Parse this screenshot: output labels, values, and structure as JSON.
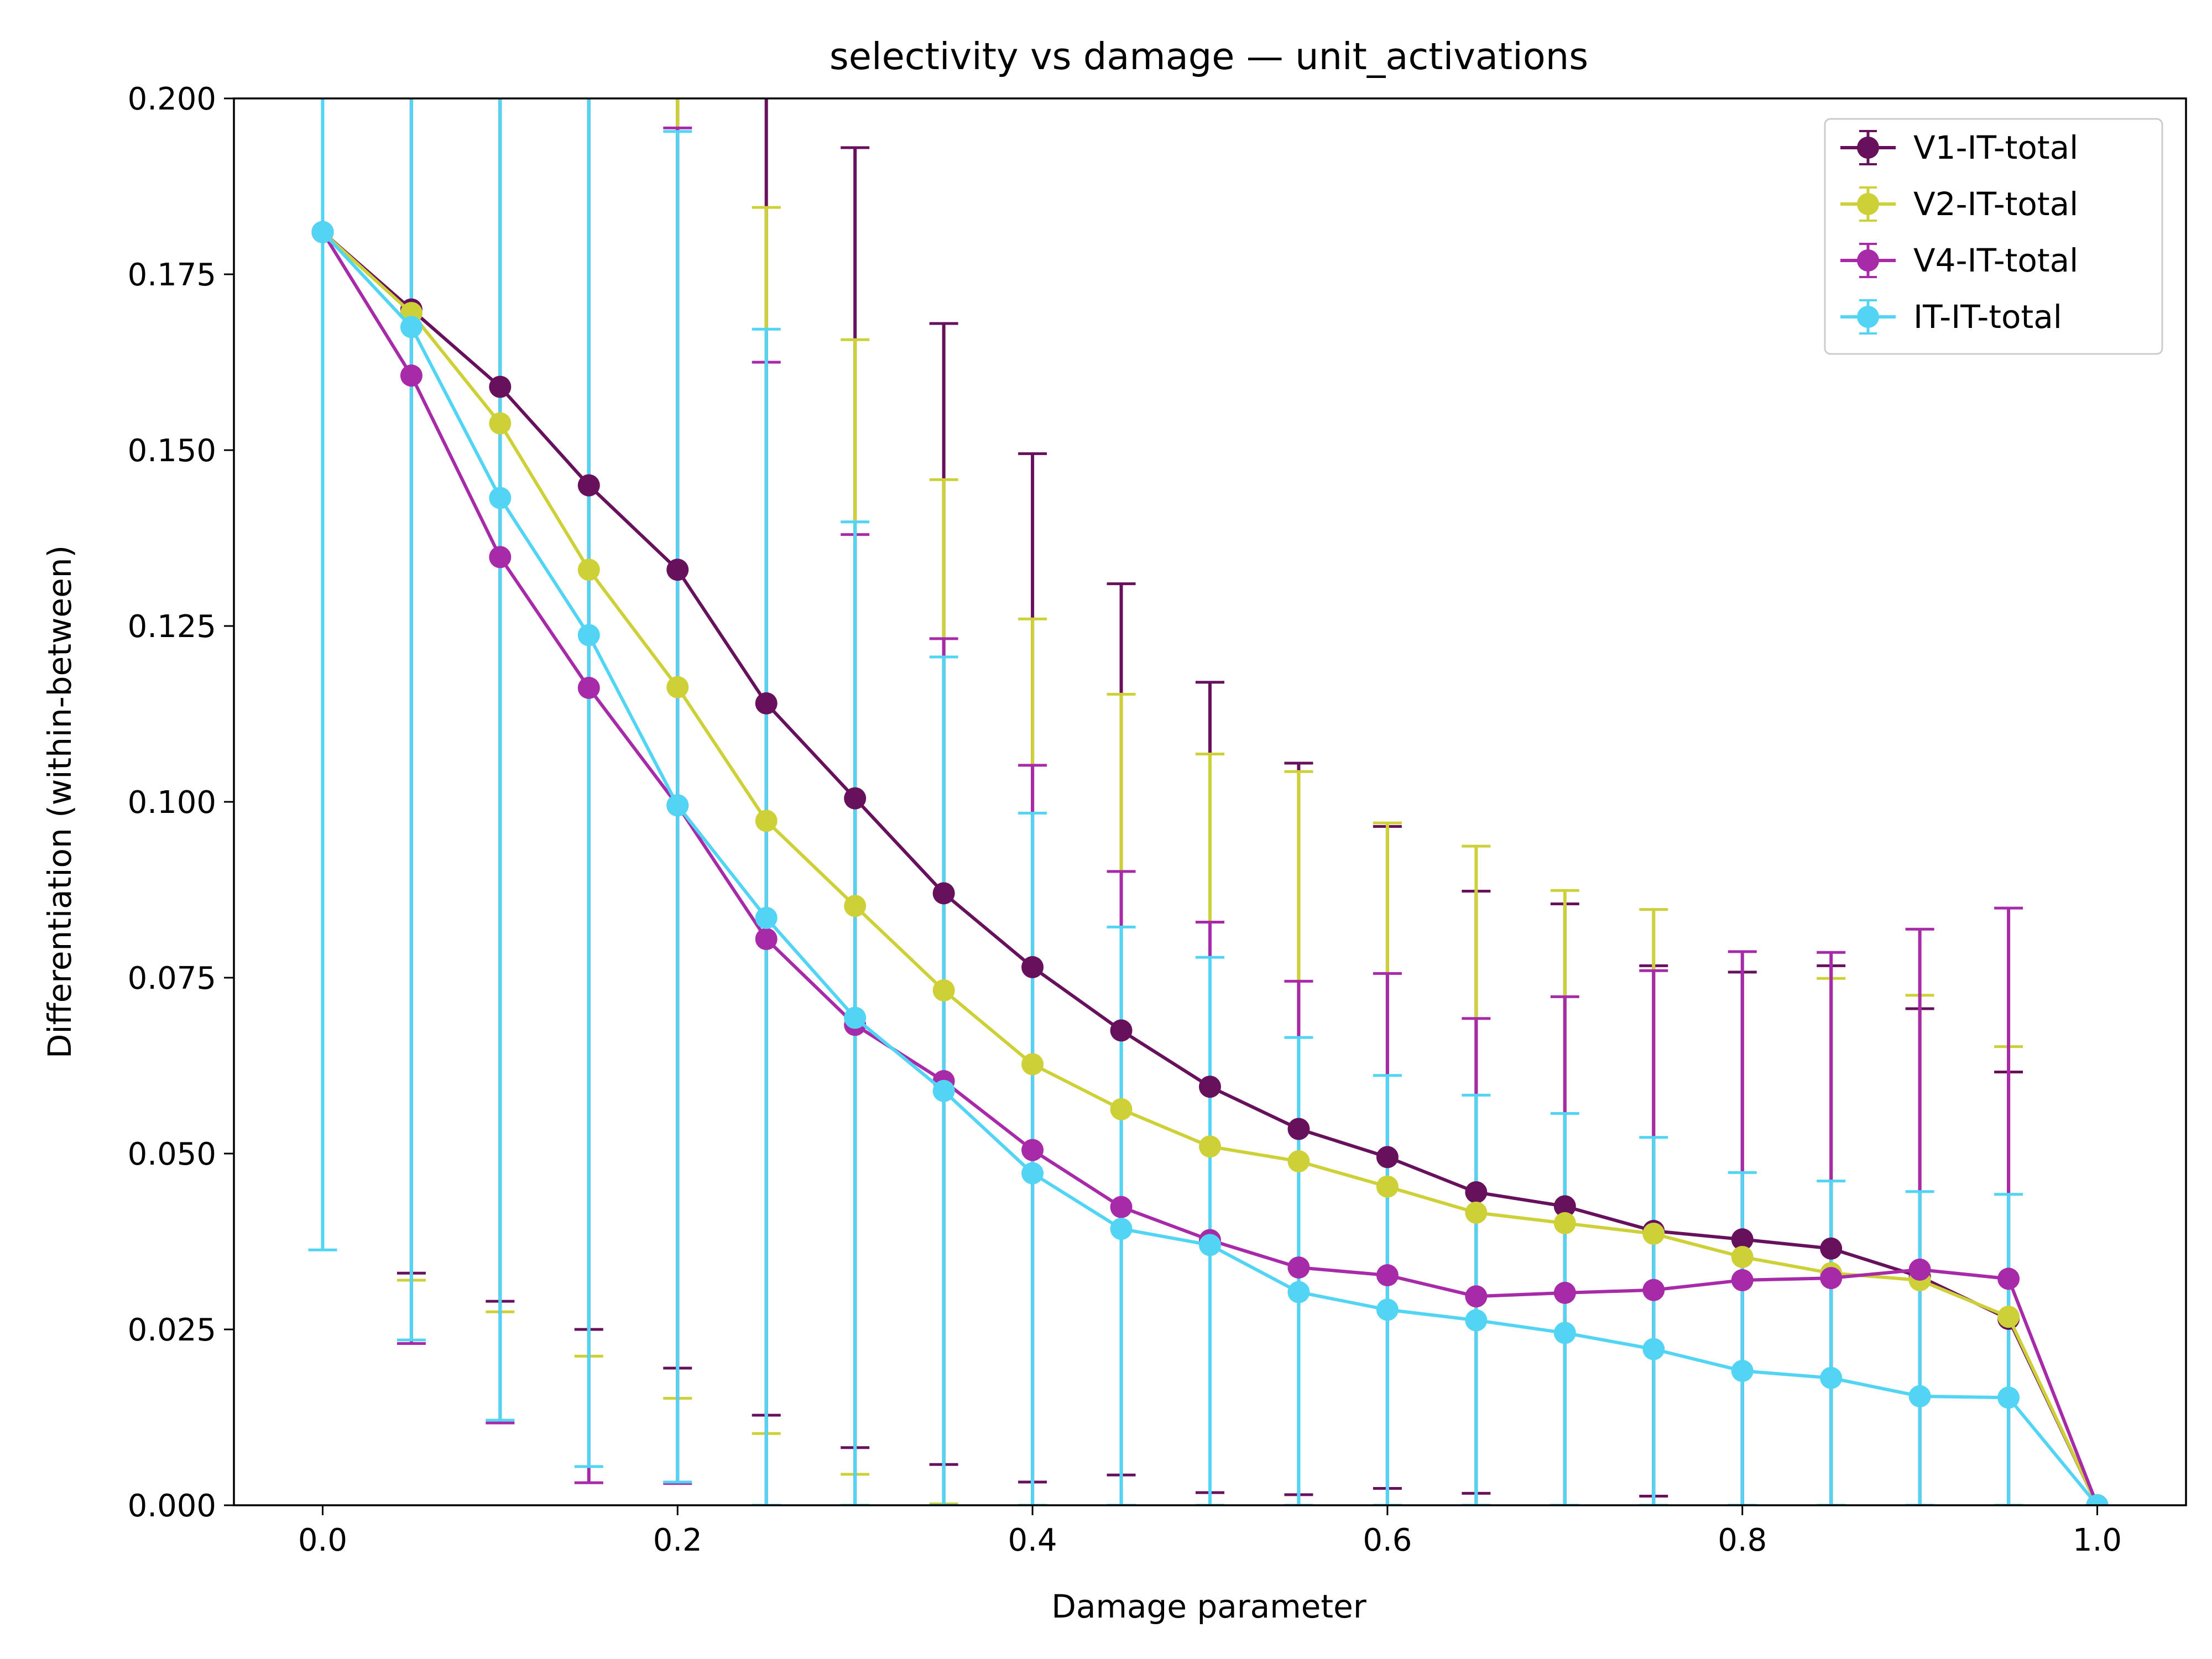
{
  "chart_data": {
    "type": "line",
    "title": "selectivity vs damage — unit_activations",
    "xlabel": "Damage parameter",
    "ylabel": "Differentiation (within-between)",
    "xlim": [
      -0.05,
      1.05
    ],
    "ylim": [
      0,
      0.2
    ],
    "xticks": [
      "0.0",
      "0.2",
      "0.4",
      "0.6",
      "0.8",
      "1.0"
    ],
    "yticks": [
      "0.000",
      "0.025",
      "0.050",
      "0.075",
      "0.100",
      "0.125",
      "0.150",
      "0.175",
      "0.200"
    ],
    "x": [
      0.0,
      0.05,
      0.1,
      0.15,
      0.2,
      0.25,
      0.3,
      0.35,
      0.4,
      0.45,
      0.5,
      0.55,
      0.6,
      0.65,
      0.7,
      0.75,
      0.8,
      0.85,
      0.9,
      0.95,
      1.0
    ],
    "legend_position": "top-right",
    "grid": false,
    "series": [
      {
        "name": "V1-IT-total",
        "color": "#67115d",
        "values": [
          0.181,
          0.17,
          0.159,
          0.145,
          0.133,
          0.114,
          0.1005,
          0.087,
          0.0765,
          0.0675,
          0.0595,
          0.0535,
          0.0495,
          0.0445,
          0.0425,
          0.039,
          0.0378,
          0.0365,
          0.0325,
          0.0265,
          0.0
        ],
        "err_low": [
          null,
          0.033,
          0.029,
          0.025,
          0.0195,
          0.0128,
          0.0082,
          0.0058,
          0.0033,
          0.0043,
          0.0018,
          0.0015,
          0.0024,
          0.0017,
          0.0,
          0.0013,
          null,
          null,
          null,
          null,
          null
        ],
        "err_high": [
          null,
          null,
          null,
          null,
          null,
          null,
          0.193,
          0.168,
          0.1495,
          0.131,
          0.117,
          0.1055,
          0.0965,
          0.0873,
          0.0855,
          0.0767,
          0.0758,
          0.0767,
          0.0706,
          0.0616,
          null
        ]
      },
      {
        "name": "V2-IT-total",
        "color": "#cdd137",
        "values": [
          0.181,
          0.1695,
          0.1538,
          0.133,
          0.1163,
          0.0973,
          0.0852,
          0.0732,
          0.0627,
          0.0563,
          0.051,
          0.0489,
          0.0453,
          0.0416,
          0.0401,
          0.0386,
          0.0353,
          0.033,
          0.032,
          0.0268,
          0.0
        ],
        "err_low": [
          null,
          0.032,
          0.0275,
          0.0212,
          0.0152,
          0.0102,
          0.0044,
          0.0002,
          null,
          null,
          null,
          null,
          null,
          null,
          null,
          null,
          null,
          null,
          null,
          null,
          null
        ],
        "err_high": [
          null,
          null,
          null,
          null,
          null,
          0.1845,
          0.1657,
          0.1458,
          0.126,
          0.1153,
          0.1068,
          0.1043,
          0.097,
          0.0937,
          0.0874,
          0.0847,
          null,
          0.0749,
          0.0725,
          0.0652,
          null
        ]
      },
      {
        "name": "V4-IT-total",
        "color": "#a72aa8",
        "values": [
          0.181,
          0.1606,
          0.1348,
          0.1162,
          0.0995,
          0.0805,
          0.0683,
          0.0603,
          0.0505,
          0.0424,
          0.0377,
          0.0338,
          0.0327,
          0.0297,
          0.0302,
          0.0306,
          0.032,
          0.0323,
          0.0335,
          0.0322,
          0.0
        ],
        "err_low": [
          null,
          0.023,
          0.0117,
          0.0032,
          0.0031,
          null,
          null,
          null,
          null,
          null,
          null,
          null,
          null,
          null,
          null,
          null,
          null,
          null,
          null,
          null,
          null
        ],
        "err_high": [
          null,
          null,
          null,
          null,
          0.1958,
          0.1625,
          0.138,
          0.1232,
          0.1052,
          0.0901,
          0.0829,
          0.0745,
          0.0756,
          0.0692,
          0.0723,
          0.076,
          0.0787,
          0.0786,
          0.0819,
          0.0849,
          null
        ]
      },
      {
        "name": "IT-IT-total",
        "color": "#52d4f5",
        "values": [
          0.181,
          0.1675,
          0.1432,
          0.1237,
          0.0995,
          0.0835,
          0.0693,
          0.0589,
          0.0472,
          0.0393,
          0.037,
          0.0303,
          0.0278,
          0.0263,
          0.0245,
          0.0222,
          0.0191,
          0.0181,
          0.0155,
          0.0153,
          0.0
        ],
        "err_low": [
          0.0363,
          0.0235,
          0.0121,
          0.0055,
          0.0033,
          0.0,
          0.0,
          0.0,
          0.0,
          0.0,
          0.0,
          0.0,
          0.0,
          0.0,
          0.0,
          0.0,
          0.0,
          0.0,
          0.0,
          0.0,
          null
        ],
        "err_high": [
          null,
          null,
          null,
          null,
          0.1953,
          0.1672,
          0.1398,
          0.1206,
          0.0984,
          0.0822,
          0.0779,
          0.0665,
          0.0611,
          0.0583,
          0.0557,
          0.0523,
          0.0473,
          0.0461,
          0.0446,
          0.0442,
          null
        ]
      }
    ]
  }
}
